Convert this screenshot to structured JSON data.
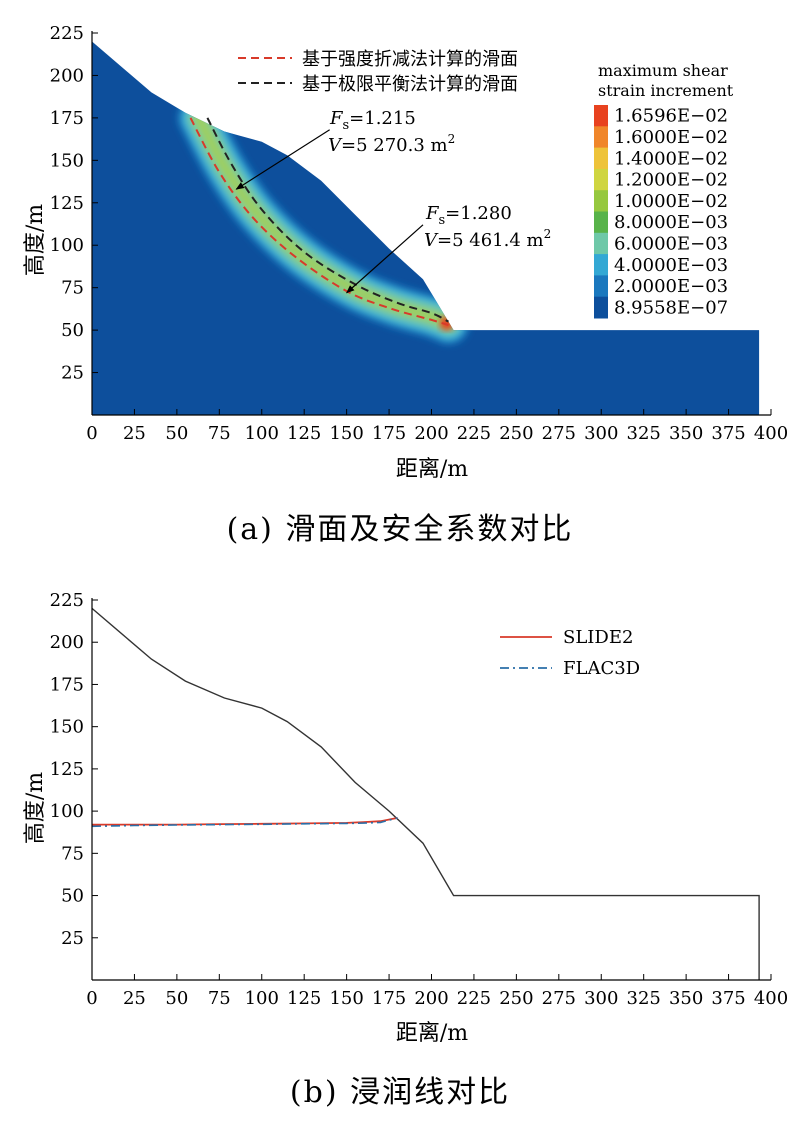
{
  "chart_data": [
    {
      "id": "a",
      "type": "contour",
      "caption": "(a) 滑面及安全系数对比",
      "xlabel": "距离/m",
      "ylabel": "高度/m",
      "xlim": [
        0,
        400
      ],
      "ylim": [
        0,
        225
      ],
      "xticks": [
        0,
        25,
        50,
        75,
        100,
        125,
        150,
        175,
        200,
        225,
        250,
        275,
        300,
        325,
        350,
        375,
        400
      ],
      "yticks": [
        25,
        50,
        75,
        100,
        125,
        150,
        175,
        200,
        225
      ],
      "slope_profile": [
        [
          0,
          220
        ],
        [
          35,
          190
        ],
        [
          55,
          178
        ],
        [
          78,
          167
        ],
        [
          100,
          161
        ],
        [
          115,
          153
        ],
        [
          135,
          138
        ],
        [
          155,
          118
        ],
        [
          175,
          98
        ],
        [
          195,
          80
        ],
        [
          213,
          50
        ],
        [
          393,
          50
        ],
        [
          393,
          0
        ],
        [
          0,
          0
        ]
      ],
      "series": [
        {
          "name": "基于强度折减法计算的滑面",
          "color": "#d83a2a",
          "dash": "dashed",
          "points": [
            [
              58,
              175
            ],
            [
              75,
              143
            ],
            [
              95,
              116
            ],
            [
              120,
              93
            ],
            [
              150,
              73
            ],
            [
              175,
              63
            ],
            [
              200,
              56
            ],
            [
              210,
              53
            ]
          ]
        },
        {
          "name": "基于极限平衡法计算的滑面",
          "color": "#222222",
          "dash": "dashed",
          "points": [
            [
              68,
              175
            ],
            [
              82,
              148
            ],
            [
              100,
              121
            ],
            [
              125,
              96
            ],
            [
              155,
              77
            ],
            [
              180,
              66
            ],
            [
              200,
              60
            ],
            [
              210,
              55
            ]
          ]
        }
      ],
      "annotations": [
        {
          "fs_label": "F",
          "fs_sub": "s",
          "fs_value": "=1.215",
          "v_label": "V",
          "v_value": "=5 270.3 m",
          "v_sup": "2",
          "arrow_from": [
            140,
            168
          ],
          "arrow_to": [
            85,
            133
          ]
        },
        {
          "fs_label": "F",
          "fs_sub": "s",
          "fs_value": "=1.280",
          "v_label": "V",
          "v_value": "=5 461.4 m",
          "v_sup": "2",
          "arrow_from": [
            195,
            112
          ],
          "arrow_to": [
            150,
            72
          ]
        }
      ],
      "colorbar": {
        "title_line1": "maximum shear",
        "title_line2": "strain increment",
        "levels": [
          "1.6596E−02",
          "1.6000E−02",
          "1.4000E−02",
          "1.2000E−02",
          "1.0000E−02",
          "8.0000E−03",
          "6.0000E−03",
          "4.0000E−03",
          "2.0000E−03",
          "8.9558E−07"
        ],
        "colors": [
          "#e8421f",
          "#f0862a",
          "#eec33a",
          "#cfd541",
          "#96c83f",
          "#58b34a",
          "#6ec8a8",
          "#33a8d4",
          "#1a78be",
          "#0d4f9c"
        ]
      },
      "field_colors": {
        "base": "#0d4f9c",
        "band1": "#1a78be",
        "band2": "#3fb6d8",
        "band3": "#6ec8a8",
        "band4": "#9bcf63",
        "hot": "#e8421f"
      }
    },
    {
      "id": "b",
      "type": "line",
      "caption": "(b) 浸润线对比",
      "xlabel": "距离/m",
      "ylabel": "高度/m",
      "xlim": [
        0,
        400
      ],
      "ylim": [
        0,
        225
      ],
      "xticks": [
        0,
        25,
        50,
        75,
        100,
        125,
        150,
        175,
        200,
        225,
        250,
        275,
        300,
        325,
        350,
        375,
        400
      ],
      "yticks": [
        25,
        50,
        75,
        100,
        125,
        150,
        175,
        200,
        225
      ],
      "slope_profile": [
        [
          0,
          220
        ],
        [
          35,
          190
        ],
        [
          55,
          177
        ],
        [
          78,
          167
        ],
        [
          100,
          161
        ],
        [
          115,
          153
        ],
        [
          135,
          138
        ],
        [
          155,
          117
        ],
        [
          175,
          100
        ],
        [
          195,
          81
        ],
        [
          213,
          50
        ],
        [
          393,
          50
        ],
        [
          393,
          0
        ]
      ],
      "series": [
        {
          "name": "SLIDE2",
          "color": "#d83a2a",
          "dash": "solid",
          "points": [
            [
              0,
              92
            ],
            [
              25,
              92
            ],
            [
              50,
              92
            ],
            [
              75,
              92.3
            ],
            [
              100,
              92.5
            ],
            [
              125,
              92.7
            ],
            [
              150,
              93
            ],
            [
              160,
              93.5
            ],
            [
              170,
              94
            ],
            [
              180,
              96
            ]
          ]
        },
        {
          "name": "FLAC3D",
          "color": "#2a6fa8",
          "dash": "dashdot",
          "points": [
            [
              0,
              91
            ],
            [
              25,
              91.5
            ],
            [
              50,
              91.8
            ],
            [
              75,
              92
            ],
            [
              100,
              92.2
            ],
            [
              125,
              92.5
            ],
            [
              150,
              92.7
            ],
            [
              160,
              92.9
            ],
            [
              170,
              93.3
            ],
            [
              180,
              96
            ]
          ]
        }
      ]
    }
  ]
}
